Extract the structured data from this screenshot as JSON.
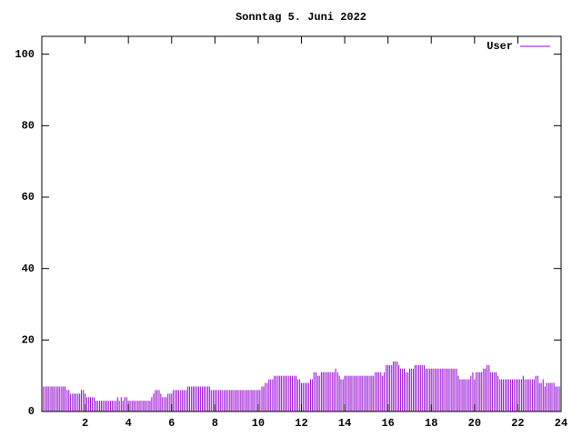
{
  "chart_data": {
    "type": "impulse",
    "title": "Sonntag 5. Juni 2022",
    "xlim": [
      0,
      24
    ],
    "xticks": [
      2,
      4,
      6,
      8,
      10,
      12,
      14,
      16,
      18,
      20,
      22,
      24
    ],
    "ylim": [
      0,
      105
    ],
    "yticks": [
      0,
      20,
      40,
      60,
      80,
      100
    ],
    "legend": "top-right",
    "x": [
      0,
      0.08,
      0.17,
      0.25,
      0.33,
      0.42,
      0.5,
      0.58,
      0.67,
      0.75,
      0.83,
      0.92,
      1,
      1.08,
      1.17,
      1.25,
      1.33,
      1.42,
      1.5,
      1.58,
      1.67,
      1.75,
      1.83,
      1.92,
      2,
      2.08,
      2.17,
      2.25,
      2.33,
      2.42,
      2.5,
      2.58,
      2.67,
      2.75,
      2.83,
      2.92,
      3,
      3.08,
      3.17,
      3.25,
      3.33,
      3.42,
      3.5,
      3.58,
      3.67,
      3.75,
      3.83,
      3.92,
      4,
      4.08,
      4.17,
      4.25,
      4.33,
      4.42,
      4.5,
      4.58,
      4.67,
      4.75,
      4.83,
      4.92,
      5,
      5.08,
      5.17,
      5.25,
      5.33,
      5.42,
      5.5,
      5.58,
      5.67,
      5.75,
      5.83,
      5.92,
      6,
      6.08,
      6.17,
      6.25,
      6.33,
      6.42,
      6.5,
      6.58,
      6.67,
      6.75,
      6.83,
      6.92,
      7,
      7.08,
      7.17,
      7.25,
      7.33,
      7.42,
      7.5,
      7.58,
      7.67,
      7.75,
      7.83,
      7.92,
      8,
      8.08,
      8.17,
      8.25,
      8.33,
      8.42,
      8.5,
      8.58,
      8.67,
      8.75,
      8.83,
      8.92,
      9,
      9.08,
      9.17,
      9.25,
      9.33,
      9.42,
      9.5,
      9.58,
      9.67,
      9.75,
      9.83,
      9.92,
      10,
      10.08,
      10.17,
      10.25,
      10.33,
      10.42,
      10.5,
      10.58,
      10.67,
      10.75,
      10.83,
      10.92,
      11,
      11.08,
      11.17,
      11.25,
      11.33,
      11.42,
      11.5,
      11.58,
      11.67,
      11.75,
      11.83,
      11.92,
      12,
      12.08,
      12.17,
      12.25,
      12.33,
      12.42,
      12.5,
      12.58,
      12.67,
      12.75,
      12.83,
      12.92,
      13,
      13.08,
      13.17,
      13.25,
      13.33,
      13.42,
      13.5,
      13.58,
      13.67,
      13.75,
      13.83,
      13.92,
      14,
      14.08,
      14.17,
      14.25,
      14.33,
      14.42,
      14.5,
      14.58,
      14.67,
      14.75,
      14.83,
      14.92,
      15,
      15.08,
      15.17,
      15.25,
      15.33,
      15.42,
      15.5,
      15.58,
      15.67,
      15.75,
      15.83,
      15.92,
      16,
      16.08,
      16.17,
      16.25,
      16.33,
      16.42,
      16.5,
      16.58,
      16.67,
      16.75,
      16.83,
      16.92,
      17,
      17.08,
      17.17,
      17.25,
      17.33,
      17.42,
      17.5,
      17.58,
      17.67,
      17.75,
      17.83,
      17.92,
      18,
      18.08,
      18.17,
      18.25,
      18.33,
      18.42,
      18.5,
      18.58,
      18.67,
      18.75,
      18.83,
      18.92,
      19,
      19.08,
      19.17,
      19.25,
      19.33,
      19.42,
      19.5,
      19.58,
      19.67,
      19.75,
      19.83,
      19.92,
      20,
      20.08,
      20.17,
      20.25,
      20.33,
      20.42,
      20.5,
      20.58,
      20.67,
      20.75,
      20.83,
      20.92,
      21,
      21.08,
      21.17,
      21.25,
      21.33,
      21.42,
      21.5,
      21.58,
      21.67,
      21.75,
      21.83,
      21.92,
      22,
      22.08,
      22.17,
      22.25,
      22.33,
      22.42,
      22.5,
      22.58,
      22.67,
      22.75,
      22.83,
      22.92,
      23,
      23.08,
      23.17,
      23.25,
      23.33,
      23.42,
      23.5,
      23.58,
      23.67,
      23.75,
      23.83,
      23.92
    ],
    "series": [
      {
        "name": "User",
        "color": "#9400d3",
        "values": [
          7,
          7,
          7,
          7,
          7,
          7,
          7,
          7,
          7,
          7,
          7,
          7,
          7,
          7,
          6,
          6,
          5,
          5,
          5,
          5,
          5,
          5,
          6,
          6,
          5,
          4,
          4,
          4,
          4,
          4,
          3,
          3,
          3,
          3,
          3,
          3,
          3,
          3,
          3,
          3,
          3,
          3,
          4,
          3,
          4,
          3,
          4,
          4,
          3,
          3,
          3,
          3,
          3,
          3,
          3,
          3,
          3,
          3,
          3,
          3,
          3,
          4,
          5,
          6,
          6,
          6,
          5,
          4,
          4,
          4,
          5,
          5,
          5,
          6,
          6,
          6,
          6,
          6,
          6,
          6,
          6,
          7,
          7,
          7,
          7,
          7,
          7,
          7,
          7,
          7,
          7,
          7,
          7,
          7,
          6,
          6,
          6,
          6,
          6,
          6,
          6,
          6,
          6,
          6,
          6,
          6,
          6,
          6,
          6,
          6,
          6,
          6,
          6,
          6,
          6,
          6,
          6,
          6,
          6,
          6,
          6,
          6,
          7,
          7,
          8,
          8,
          9,
          9,
          9,
          10,
          10,
          10,
          10,
          10,
          10,
          10,
          10,
          10,
          10,
          10,
          10,
          10,
          9,
          9,
          8,
          8,
          8,
          8,
          8,
          9,
          9,
          11,
          11,
          10,
          10,
          11,
          11,
          11,
          11,
          11,
          11,
          11,
          11,
          12,
          11,
          10,
          9,
          9,
          10,
          10,
          10,
          10,
          10,
          10,
          10,
          10,
          10,
          10,
          10,
          10,
          10,
          10,
          10,
          10,
          10,
          11,
          11,
          11,
          11,
          10,
          11,
          13,
          13,
          13,
          13,
          14,
          14,
          14,
          13,
          12,
          12,
          12,
          11,
          11,
          12,
          12,
          12,
          13,
          13,
          13,
          13,
          13,
          13,
          12,
          12,
          12,
          12,
          12,
          12,
          12,
          12,
          12,
          12,
          12,
          12,
          12,
          12,
          12,
          12,
          12,
          12,
          10,
          9,
          9,
          9,
          9,
          9,
          9,
          10,
          11,
          9,
          11,
          11,
          11,
          11,
          12,
          12,
          13,
          13,
          11,
          11,
          11,
          11,
          10,
          9,
          9,
          9,
          9,
          9,
          9,
          9,
          9,
          9,
          9,
          9,
          9,
          9,
          10,
          9,
          9,
          9,
          9,
          9,
          9,
          10,
          10,
          8,
          8,
          9,
          7,
          8,
          8,
          8,
          8,
          8,
          7,
          7,
          7
        ]
      }
    ]
  }
}
